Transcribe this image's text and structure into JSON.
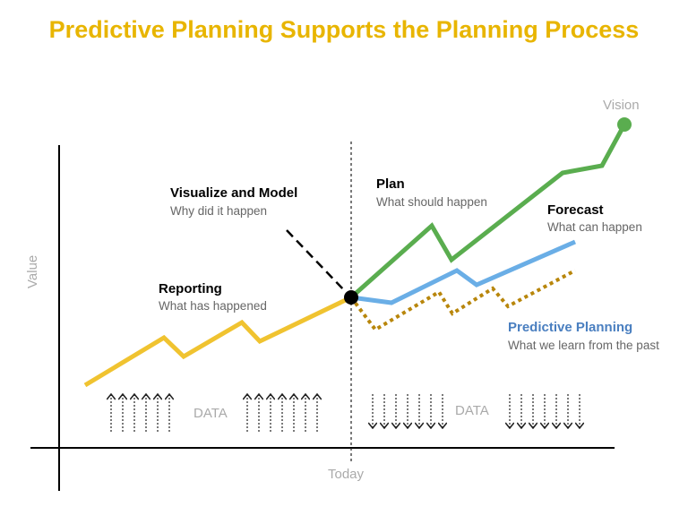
{
  "title": "Predictive Planning Supports the Planning Process",
  "axis": {
    "y_label": "Value",
    "x_marker": "Today"
  },
  "annotations": {
    "reporting": {
      "title": "Reporting",
      "subtitle": "What has happened"
    },
    "visualize": {
      "title": "Visualize and Model",
      "subtitle": "Why did it happen"
    },
    "plan": {
      "title": "Plan",
      "subtitle": "What should happen"
    },
    "forecast": {
      "title": "Forecast",
      "subtitle": "What can happen"
    },
    "predictive": {
      "title": "Predictive Planning",
      "subtitle": "What we learn from the past"
    },
    "vision": "Vision"
  },
  "data_labels": {
    "left": "DATA",
    "right": "DATA"
  },
  "colors": {
    "title": "#e8b500",
    "reporting_line": "#f0c330",
    "plan_line": "#5aad4f",
    "forecast_line": "#6aaee6",
    "predictive_line": "#b8860b",
    "predictive_text": "#4a7fc0"
  }
}
